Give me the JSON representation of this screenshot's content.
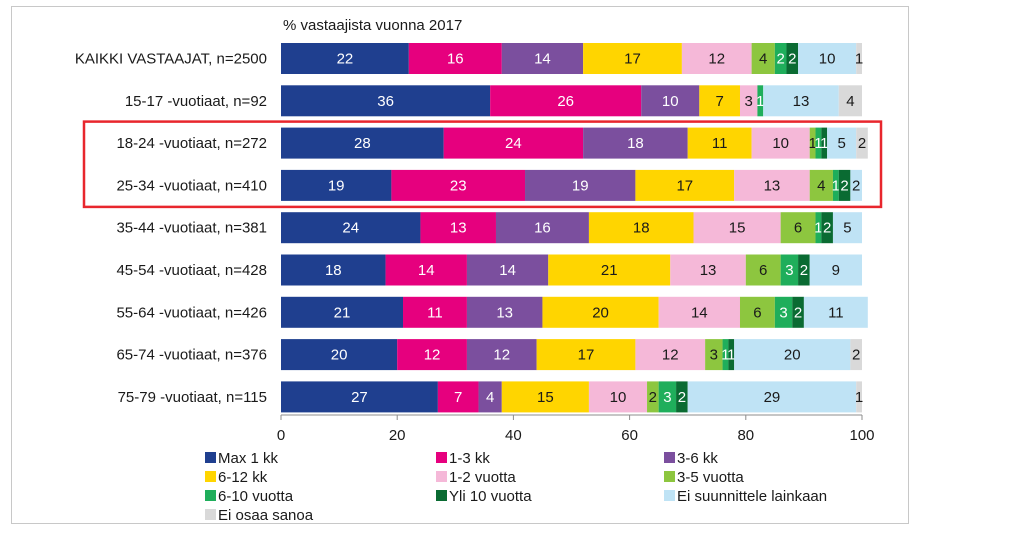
{
  "chart_data": {
    "type": "bar",
    "stacked": true,
    "orientation": "horizontal",
    "title": "% vastaajista vuonna 2017",
    "xlim": [
      0,
      100
    ],
    "xticks": [
      0,
      20,
      40,
      60,
      80,
      100
    ],
    "categories": [
      "KAIKKI VASTAAJAT, n=2500",
      "15-17 -vuotiaat, n=92",
      "18-24 -vuotiaat, n=272",
      "25-34 -vuotiaat, n=410",
      "35-44 -vuotiaat, n=381",
      "45-54 -vuotiaat, n=428",
      "55-64 -vuotiaat, n=426",
      "65-74 -vuotiaat, n=376",
      "75-79 -vuotiaat, n=115"
    ],
    "highlighted_categories": [
      2,
      3
    ],
    "highlight_color": "#e8262d",
    "series": [
      {
        "name": "Max 1 kk",
        "color": "#1f3f8f",
        "label_color": "#ffffff",
        "values": [
          22,
          36,
          28,
          19,
          24,
          18,
          21,
          20,
          27
        ]
      },
      {
        "name": "1-3 kk",
        "color": "#e6007e",
        "label_color": "#ffffff",
        "values": [
          16,
          26,
          24,
          23,
          13,
          14,
          11,
          12,
          7
        ]
      },
      {
        "name": "3-6 kk",
        "color": "#7b4f9e",
        "label_color": "#ffffff",
        "values": [
          14,
          10,
          18,
          19,
          16,
          14,
          13,
          12,
          4
        ]
      },
      {
        "name": "6-12 kk",
        "color": "#ffd500",
        "label_color": "#1a1a1a",
        "values": [
          17,
          7,
          11,
          17,
          18,
          21,
          20,
          17,
          15
        ]
      },
      {
        "name": "1-2 vuotta",
        "color": "#f5b8d8",
        "label_color": "#1a1a1a",
        "values": [
          12,
          3,
          10,
          13,
          15,
          13,
          14,
          12,
          10
        ]
      },
      {
        "name": "3-5 vuotta",
        "color": "#8dc63f",
        "label_color": "#1a1a1a",
        "values": [
          4,
          0,
          1,
          4,
          6,
          6,
          6,
          3,
          2
        ]
      },
      {
        "name": "6-10 vuotta",
        "color": "#1fae5b",
        "label_color": "#ffffff",
        "values": [
          2,
          1,
          1,
          1,
          1,
          3,
          3,
          1,
          3
        ]
      },
      {
        "name": "Yli 10 vuotta",
        "color": "#0a6b32",
        "label_color": "#ffffff",
        "values": [
          2,
          0,
          1,
          2,
          2,
          2,
          2,
          1,
          2
        ]
      },
      {
        "name": "Ei suunnittele lainkaan",
        "color": "#bfe3f5",
        "label_color": "#1a1a1a",
        "values": [
          10,
          13,
          5,
          2,
          5,
          9,
          11,
          20,
          29
        ]
      },
      {
        "name": "Ei osaa sanoa",
        "color": "#d9d9d9",
        "label_color": "#1a1a1a",
        "values": [
          1,
          4,
          2,
          0,
          0,
          0,
          0,
          2,
          1
        ]
      }
    ]
  }
}
